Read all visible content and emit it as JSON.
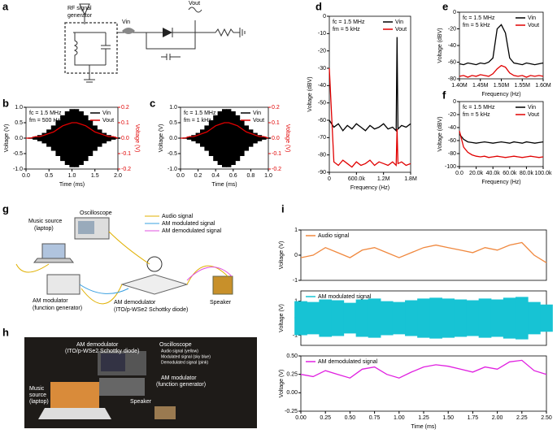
{
  "panel_labels": [
    "a",
    "b",
    "c",
    "d",
    "e",
    "f",
    "g",
    "h",
    "i"
  ],
  "schematic": {
    "generator": [
      "RF signal",
      "generator"
    ],
    "vin": "Vin",
    "vout": "Vout"
  },
  "setup_diagram": {
    "music_source": [
      "Music source",
      "(laptop)"
    ],
    "oscilloscope": "Oscilloscope",
    "legend": [
      "Audio signal",
      "AM modulated signal",
      "AM demodulated signal"
    ],
    "modulator": [
      "AM modulator",
      "(function generator)"
    ],
    "demodulator": [
      "AM demodulator",
      "(ITO/p-WSe2 Schottky diode)"
    ],
    "speaker": "Speaker"
  },
  "photo": {
    "demodulator": [
      "AM demodulator",
      "(ITO/p-WSe2 Schottky diode)"
    ],
    "oscilloscope": "Oscilloscope",
    "scope_notes": [
      "Audio signal (yellow)",
      "Modulated signal (sky blue)",
      "Demodulated signal (pink)"
    ],
    "modulator": [
      "AM modulator",
      "(function generator)"
    ],
    "music_source": [
      "Music",
      "source",
      "(laptop)"
    ],
    "speaker": "Speaker"
  },
  "chart_data": [
    {
      "type": "line",
      "x": [
        0,
        0.1,
        0.2,
        0.3,
        0.4,
        0.5,
        0.6,
        0.7,
        0.8,
        0.9,
        1.0,
        1.1,
        1.2,
        1.3,
        1.4,
        1.5,
        1.6,
        1.7,
        1.8,
        1.9,
        2.0
      ],
      "series": [
        {
          "name": "Vin",
          "color": "#000000",
          "kind": "envelope",
          "values": [
            0.01,
            0.02,
            0.05,
            0.1,
            0.17,
            0.28,
            0.41,
            0.58,
            0.74,
            0.87,
            0.94,
            0.94,
            0.87,
            0.74,
            0.58,
            0.41,
            0.28,
            0.17,
            0.1,
            0.05,
            0.02
          ]
        },
        {
          "name": "Vout",
          "color": "#e00000",
          "axis": "y2",
          "values": [
            0,
            0,
            0.01,
            0.01,
            0.02,
            0.03,
            0.04,
            0.06,
            0.08,
            0.09,
            0.1,
            0.1,
            0.09,
            0.08,
            0.06,
            0.04,
            0.03,
            0.02,
            0.01,
            0.01,
            0
          ]
        }
      ],
      "xlim": [
        0,
        2
      ],
      "ylim": [
        -1,
        1
      ],
      "y2lim": [
        -0.2,
        0.2
      ],
      "xticks": [
        {
          "value": 0,
          "label": "0.0"
        },
        0.5,
        {
          "value": 1,
          "label": "1.0"
        },
        1.5,
        {
          "value": 2,
          "label": "2.0"
        }
      ],
      "yticks": [
        {
          "value": -1,
          "label": "-1.0"
        },
        -0.5,
        {
          "value": 0,
          "label": "0.0"
        },
        0.5,
        {
          "value": 1,
          "label": "1.0"
        }
      ],
      "y2ticks": [
        -0.2,
        -0.1,
        {
          "value": 0,
          "label": "0.0"
        },
        0.1,
        0.2
      ],
      "xlabel": "Time (ms)",
      "ylabel": "Voltage (V)",
      "y2label": "Voltage (V)",
      "annotations": [
        "fc = 1.5 MHz",
        "fm = 500 Hz"
      ],
      "legend": "upper right"
    },
    {
      "type": "line",
      "x": [
        0,
        0.05,
        0.1,
        0.15,
        0.2,
        0.25,
        0.3,
        0.35,
        0.4,
        0.45,
        0.5,
        0.55,
        0.6,
        0.65,
        0.7,
        0.75,
        0.8,
        0.85,
        0.9,
        0.95,
        1.0
      ],
      "series": [
        {
          "name": "Vin",
          "color": "#000000",
          "kind": "envelope",
          "values": [
            0.01,
            0.02,
            0.05,
            0.1,
            0.17,
            0.28,
            0.41,
            0.58,
            0.74,
            0.87,
            0.94,
            0.94,
            0.87,
            0.74,
            0.58,
            0.41,
            0.28,
            0.17,
            0.1,
            0.05,
            0.02
          ]
        },
        {
          "name": "Vout",
          "color": "#e00000",
          "axis": "y2",
          "values": [
            0,
            0,
            0.01,
            0.01,
            0.02,
            0.03,
            0.04,
            0.06,
            0.08,
            0.09,
            0.1,
            0.1,
            0.09,
            0.08,
            0.06,
            0.04,
            0.03,
            0.02,
            0.01,
            0.01,
            0
          ]
        }
      ],
      "xlim": [
        0,
        1
      ],
      "ylim": [
        -1,
        1
      ],
      "y2lim": [
        -0.2,
        0.2
      ],
      "xticks": [
        {
          "value": 0,
          "label": "0.0"
        },
        0.2,
        0.4,
        0.6,
        0.8,
        {
          "value": 1,
          "label": "1.0"
        }
      ],
      "yticks": [
        {
          "value": -1,
          "label": "-1.0"
        },
        -0.5,
        {
          "value": 0,
          "label": "0.0"
        },
        0.5,
        {
          "value": 1,
          "label": "1.0"
        }
      ],
      "y2ticks": [
        -0.2,
        -0.1,
        {
          "value": 0,
          "label": "0.0"
        },
        0.1,
        0.2
      ],
      "xlabel": "Time (ms)",
      "ylabel": "Voltage (V)",
      "y2label": "Voltage (V)",
      "annotations": [
        "fc = 1.5 MHz",
        "fm = 1 kHz"
      ],
      "legend": "upper right"
    },
    {
      "type": "line",
      "x": [
        0,
        100000,
        200000,
        300000,
        400000,
        500000,
        600000,
        700000,
        800000,
        900000,
        1000000,
        1100000,
        1200000,
        1300000,
        1400000,
        1480000,
        1500000,
        1520000,
        1600000,
        1700000,
        1800000
      ],
      "series": [
        {
          "name": "Vin",
          "color": "#000000",
          "values": [
            -60,
            -64,
            -62,
            -66,
            -63,
            -65,
            -62,
            -64,
            -66,
            -63,
            -65,
            -64,
            -62,
            -65,
            -64,
            -66,
            -12,
            -65,
            -63,
            -64,
            -62
          ]
        },
        {
          "name": "Vout",
          "color": "#e00000",
          "values": [
            -30,
            -84,
            -86,
            -83,
            -85,
            -87,
            -84,
            -86,
            -85,
            -83,
            -86,
            -84,
            -85,
            -86,
            -84,
            -86,
            -65,
            -85,
            -84,
            -86,
            -85
          ]
        }
      ],
      "xlim": [
        0,
        1800000
      ],
      "ylim": [
        -90,
        0
      ],
      "xticks": [
        0,
        {
          "value": 600000,
          "label": "600.0k"
        },
        {
          "value": 1200000,
          "label": "1.2M"
        },
        {
          "value": 1800000,
          "label": "1.8M"
        }
      ],
      "yticks": [
        -90,
        -80,
        -70,
        -60,
        -50,
        -40,
        -30,
        -20,
        -10,
        0
      ],
      "xlabel": "Frequency (Hz)",
      "ylabel": "Voltage (dBV)",
      "annotations": [
        "fc = 1.5 MHz",
        "fm = 5 kHz"
      ],
      "legend": "upper right"
    },
    {
      "type": "line",
      "x": [
        1400000,
        1410000,
        1420000,
        1430000,
        1440000,
        1450000,
        1460000,
        1470000,
        1480000,
        1490000,
        1500000,
        1510000,
        1520000,
        1530000,
        1540000,
        1550000,
        1560000,
        1570000,
        1580000,
        1590000,
        1600000
      ],
      "series": [
        {
          "name": "Vin",
          "color": "#000000",
          "values": [
            -62,
            -63,
            -61,
            -62,
            -63,
            -61,
            -62,
            -60,
            -55,
            -20,
            -15,
            -25,
            -55,
            -61,
            -62,
            -63,
            -61,
            -62,
            -63,
            -62,
            -61
          ]
        },
        {
          "name": "Vout",
          "color": "#e00000",
          "values": [
            -77,
            -76,
            -78,
            -76,
            -77,
            -75,
            -76,
            -77,
            -74,
            -68,
            -64,
            -66,
            -73,
            -76,
            -77,
            -76,
            -78,
            -76,
            -77,
            -76,
            -77
          ]
        }
      ],
      "xlim": [
        1400000,
        1600000
      ],
      "ylim": [
        -80,
        0
      ],
      "xticks": [
        {
          "value": 1400000,
          "label": "1.40M"
        },
        {
          "value": 1450000,
          "label": "1.45M"
        },
        {
          "value": 1500000,
          "label": "1.50M"
        },
        {
          "value": 1550000,
          "label": "1.55M"
        },
        {
          "value": 1600000,
          "label": "1.60M"
        }
      ],
      "yticks": [
        -80,
        -60,
        -40,
        -20,
        0
      ],
      "xlabel": "Frequency (Hz)",
      "ylabel": "Voltage (dBV)",
      "annotations": [
        "fc = 1.5 MHz",
        "fm = 5 kHz"
      ],
      "legend": "upper right"
    },
    {
      "type": "line",
      "x": [
        0,
        5000,
        10000,
        15000,
        20000,
        25000,
        30000,
        35000,
        40000,
        45000,
        50000,
        55000,
        60000,
        65000,
        70000,
        75000,
        80000,
        85000,
        90000,
        95000,
        100000
      ],
      "series": [
        {
          "name": "Vin",
          "color": "#000000",
          "values": [
            -50,
            -58,
            -62,
            -63,
            -64,
            -63,
            -62,
            -63,
            -64,
            -63,
            -62,
            -63,
            -64,
            -62,
            -63,
            -64,
            -62,
            -63,
            -64,
            -63,
            -62
          ]
        },
        {
          "name": "Vout",
          "color": "#e00000",
          "values": [
            -45,
            -70,
            -78,
            -82,
            -84,
            -85,
            -84,
            -86,
            -85,
            -84,
            -85,
            -86,
            -85,
            -84,
            -85,
            -86,
            -85,
            -84,
            -85,
            -86,
            -85
          ]
        }
      ],
      "xlim": [
        0,
        100000
      ],
      "ylim": [
        -100,
        0
      ],
      "xticks": [
        {
          "value": 0,
          "label": "0.0"
        },
        {
          "value": 20000,
          "label": "20.0k"
        },
        {
          "value": 40000,
          "label": "40.0k"
        },
        {
          "value": 60000,
          "label": "60.0k"
        },
        {
          "value": 80000,
          "label": "80.0k"
        },
        {
          "value": 100000,
          "label": "100.0k"
        }
      ],
      "yticks": [
        -100,
        -80,
        -60,
        -40,
        -20,
        0
      ],
      "xlabel": "Frequency (Hz)",
      "ylabel": "Voltage (dBV)",
      "annotations": [
        "fc = 1.5 MHz",
        "fm = 5 kHz"
      ],
      "legend": "upper right"
    },
    {
      "type": "line",
      "x": [
        0,
        0.125,
        0.25,
        0.375,
        0.5,
        0.625,
        0.75,
        0.875,
        1.0,
        1.125,
        1.25,
        1.375,
        1.5,
        1.625,
        1.75,
        1.875,
        2.0,
        2.125,
        2.25,
        2.375,
        2.5
      ],
      "series": [
        {
          "name": "Audio signal",
          "color": "#f0883e",
          "values": [
            -0.1,
            0,
            0.3,
            0.1,
            -0.1,
            0.2,
            0.3,
            0.1,
            -0.1,
            0.1,
            0.3,
            0.4,
            0.3,
            0.2,
            0.1,
            0.3,
            0.2,
            0.4,
            0.5,
            0,
            -0.3
          ]
        }
      ],
      "xlim": [
        0,
        2.5
      ],
      "ylim": [
        -1,
        1
      ],
      "yticks": [
        -1,
        0,
        1
      ],
      "ylabel": "Voltage (V)",
      "legend": "upper left"
    },
    {
      "type": "line",
      "x": [
        0,
        0.125,
        0.25,
        0.375,
        0.5,
        0.625,
        0.75,
        0.875,
        1.0,
        1.125,
        1.25,
        1.375,
        1.5,
        1.625,
        1.75,
        1.875,
        2.0,
        2.125,
        2.25,
        2.375,
        2.5
      ],
      "series": [
        {
          "name": "AM modulated signal",
          "color": "#17c3d4",
          "kind": "envelope",
          "values": [
            1.0,
            0.95,
            1.1,
            1.05,
            0.9,
            1.1,
            1.15,
            1.0,
            0.95,
            1.05,
            1.15,
            1.2,
            1.15,
            1.1,
            1.05,
            1.15,
            1.1,
            1.2,
            1.25,
            0.95,
            0.8
          ]
        }
      ],
      "xlim": [
        0,
        2.5
      ],
      "ylim": [
        -1.6,
        1.6
      ],
      "yticks": [
        -1,
        0,
        1
      ],
      "ylabel": "Voltage (V)",
      "legend": "upper left"
    },
    {
      "type": "line",
      "x": [
        0,
        0.125,
        0.25,
        0.375,
        0.5,
        0.625,
        0.75,
        0.875,
        1.0,
        1.125,
        1.25,
        1.375,
        1.5,
        1.625,
        1.75,
        1.875,
        2.0,
        2.125,
        2.25,
        2.375,
        2.5
      ],
      "series": [
        {
          "name": "AM demodulated signal",
          "color": "#e020e0",
          "values": [
            0.25,
            0.22,
            0.3,
            0.25,
            0.2,
            0.32,
            0.35,
            0.25,
            0.2,
            0.28,
            0.35,
            0.38,
            0.36,
            0.32,
            0.28,
            0.35,
            0.32,
            0.42,
            0.44,
            0.3,
            0.25
          ]
        }
      ],
      "xlim": [
        0,
        2.5
      ],
      "ylim": [
        -0.25,
        0.5
      ],
      "xticks": [
        {
          "value": 0,
          "label": "0.00"
        },
        0.25,
        {
          "value": 0.5,
          "label": "0.50"
        },
        0.75,
        {
          "value": 1,
          "label": "1.00"
        },
        1.25,
        {
          "value": 1.5,
          "label": "1.50"
        },
        1.75,
        {
          "value": 2,
          "label": "2.00"
        },
        2.25,
        {
          "value": 2.5,
          "label": "2.50"
        }
      ],
      "yticks": [
        -0.25,
        {
          "value": 0,
          "label": "0.00"
        },
        0.25,
        {
          "value": 0.5,
          "label": "0.50"
        }
      ],
      "xlabel": "Time (ms)",
      "ylabel": "Voltage (V)",
      "legend": "upper left"
    }
  ]
}
